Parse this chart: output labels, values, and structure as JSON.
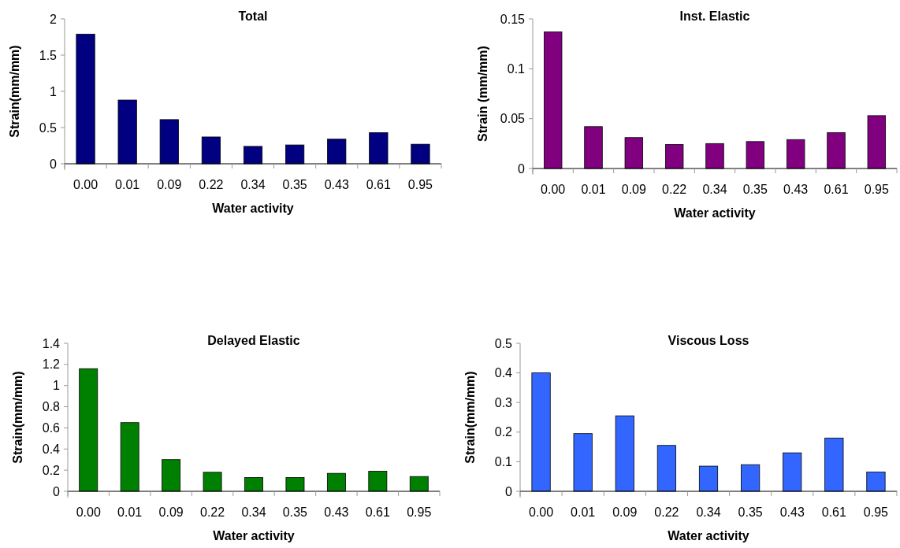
{
  "chart_data": [
    {
      "type": "bar",
      "title": "Total",
      "xlabel": "Water activity",
      "ylabel": "Strain(mm/mm)",
      "categories": [
        "0.00",
        "0.01",
        "0.09",
        "0.22",
        "0.34",
        "0.35",
        "0.43",
        "0.61",
        "0.95"
      ],
      "values": [
        1.79,
        0.88,
        0.61,
        0.37,
        0.24,
        0.26,
        0.34,
        0.43,
        0.27
      ],
      "color": "#000080",
      "ylim": [
        0,
        2
      ],
      "yticks": [
        0,
        0.5,
        1,
        1.5,
        2
      ],
      "grid": false
    },
    {
      "type": "bar",
      "title": "Inst. Elastic",
      "xlabel": "Water activity",
      "ylabel": "Strain (mm/mm)",
      "categories": [
        "0.00",
        "0.01",
        "0.09",
        "0.22",
        "0.34",
        "0.35",
        "0.43",
        "0.61",
        "0.95"
      ],
      "values": [
        0.137,
        0.042,
        0.031,
        0.024,
        0.025,
        0.027,
        0.029,
        0.036,
        0.053
      ],
      "color": "#800080",
      "ylim": [
        0,
        0.15
      ],
      "yticks": [
        0,
        0.05,
        0.1,
        0.15
      ],
      "grid": false
    },
    {
      "type": "bar",
      "title": "Delayed Elastic",
      "xlabel": "Water activity",
      "ylabel": "Strain(mm/mm)",
      "categories": [
        "0.00",
        "0.01",
        "0.09",
        "0.22",
        "0.34",
        "0.35",
        "0.43",
        "0.61",
        "0.95"
      ],
      "values": [
        1.16,
        0.65,
        0.3,
        0.18,
        0.13,
        0.13,
        0.17,
        0.19,
        0.14
      ],
      "color": "#008000",
      "ylim": [
        0,
        1.4
      ],
      "yticks": [
        0,
        0.2,
        0.4,
        0.6,
        0.8,
        1,
        1.2,
        1.4
      ],
      "grid": false
    },
    {
      "type": "bar",
      "title": "Viscous Loss",
      "xlabel": "Water activity",
      "ylabel": "Strain(mm/mm)",
      "categories": [
        "0.00",
        "0.01",
        "0.09",
        "0.22",
        "0.34",
        "0.35",
        "0.43",
        "0.61",
        "0.95"
      ],
      "values": [
        0.4,
        0.195,
        0.255,
        0.155,
        0.085,
        0.09,
        0.13,
        0.18,
        0.065
      ],
      "color": "#3366ff",
      "ylim": [
        0,
        0.5
      ],
      "yticks": [
        0,
        0.1,
        0.2,
        0.3,
        0.4,
        0.5
      ],
      "grid": false
    }
  ]
}
